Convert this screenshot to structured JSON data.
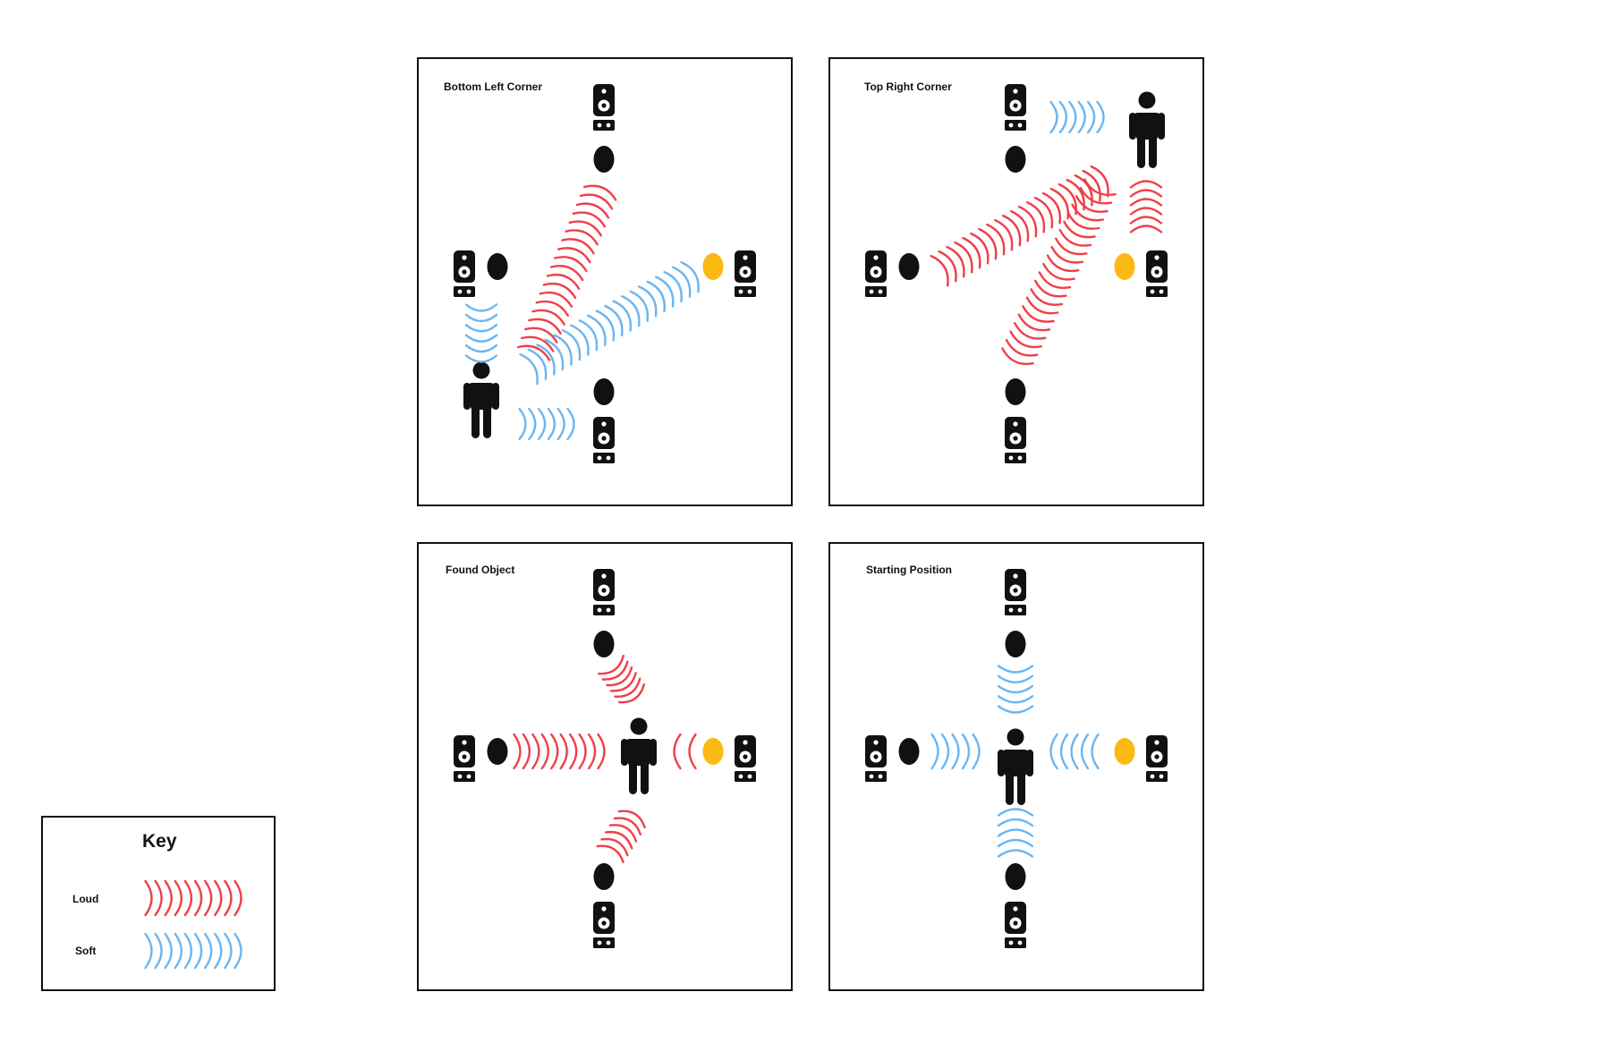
{
  "colors": {
    "loud": "#ef4048",
    "soft": "#6ab6f2",
    "target": "#fdb913",
    "ink": "#111111"
  },
  "icons": {
    "speaker": "speaker-icon",
    "microphone": "microphone-icon",
    "person": "person-icon",
    "target_object": "target-object-icon"
  },
  "panels": {
    "bottom_left_corner": {
      "title": "Bottom Left Corner"
    },
    "top_right_corner": {
      "title": "Top Right Corner"
    },
    "found_object": {
      "title": "Found Object"
    },
    "starting_position": {
      "title": "Starting Position"
    }
  },
  "key": {
    "title": "Key",
    "loud_label": "Loud",
    "soft_label": "Soft"
  }
}
